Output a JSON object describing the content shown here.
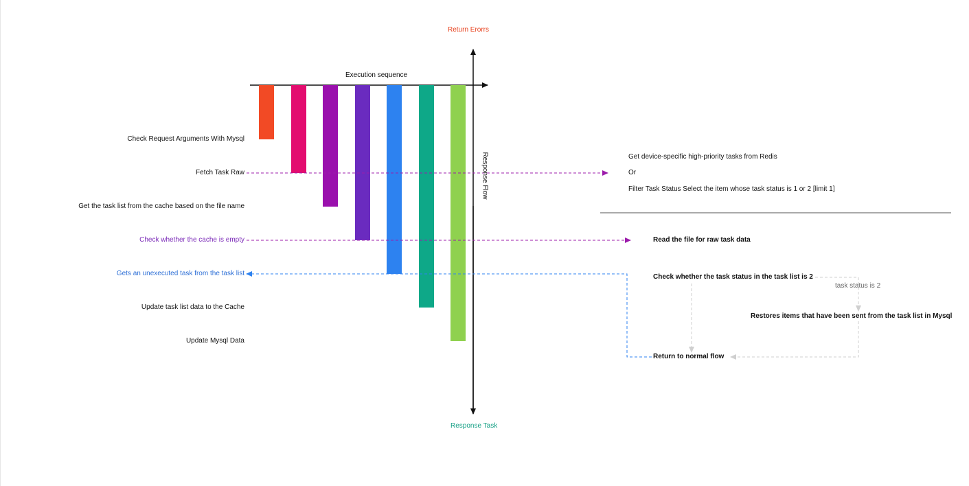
{
  "diagram": {
    "top_axis_label": "Return Erorrs",
    "bottom_axis_label": "Response Task",
    "vertical_axis_label": "Response Flow",
    "horizontal_axis_label": "Execution sequence",
    "steps": [
      {
        "label": "Check Request Arguments With Mysql",
        "color": "#f24a25"
      },
      {
        "label": "Fetch Task Raw",
        "color": "#e30d6f"
      },
      {
        "label": "Get the task list from the cache based on the file name",
        "color": "#9a10ad"
      },
      {
        "label": "Check whether the cache is empty",
        "color": "#6a2bbf"
      },
      {
        "label": "Gets an unexecuted task from the task list",
        "color": "#2d82f0"
      },
      {
        "label": "Update task list data to the Cache",
        "color": "#0ea888"
      },
      {
        "label": "Update Mysql Data",
        "color": "#8fd14f"
      }
    ],
    "label_colors": {
      "top_axis": "#e8401c",
      "bottom_axis": "#16a085",
      "check_cache_label": "#7b2ab8",
      "gets_task_label": "#2d6fd6",
      "purple_arrow": "#9c1cab",
      "blue_dashed": "#2d82f0",
      "gray_dashed": "#cccccc"
    },
    "fetch_details": {
      "line1": "Get device-specific high-priority tasks from Redis",
      "line2": "Or",
      "line3": "Filter Task Status Select the item whose task status is 1 or 2  [limit 1]"
    },
    "read_file": "Read the file for raw task data",
    "check_status": "Check whether the task status in the task list is 2",
    "status_condition": "task status is 2",
    "restores": "Restores items that have been sent from the task list in Mysql",
    "return_normal": "Return to normal flow"
  }
}
